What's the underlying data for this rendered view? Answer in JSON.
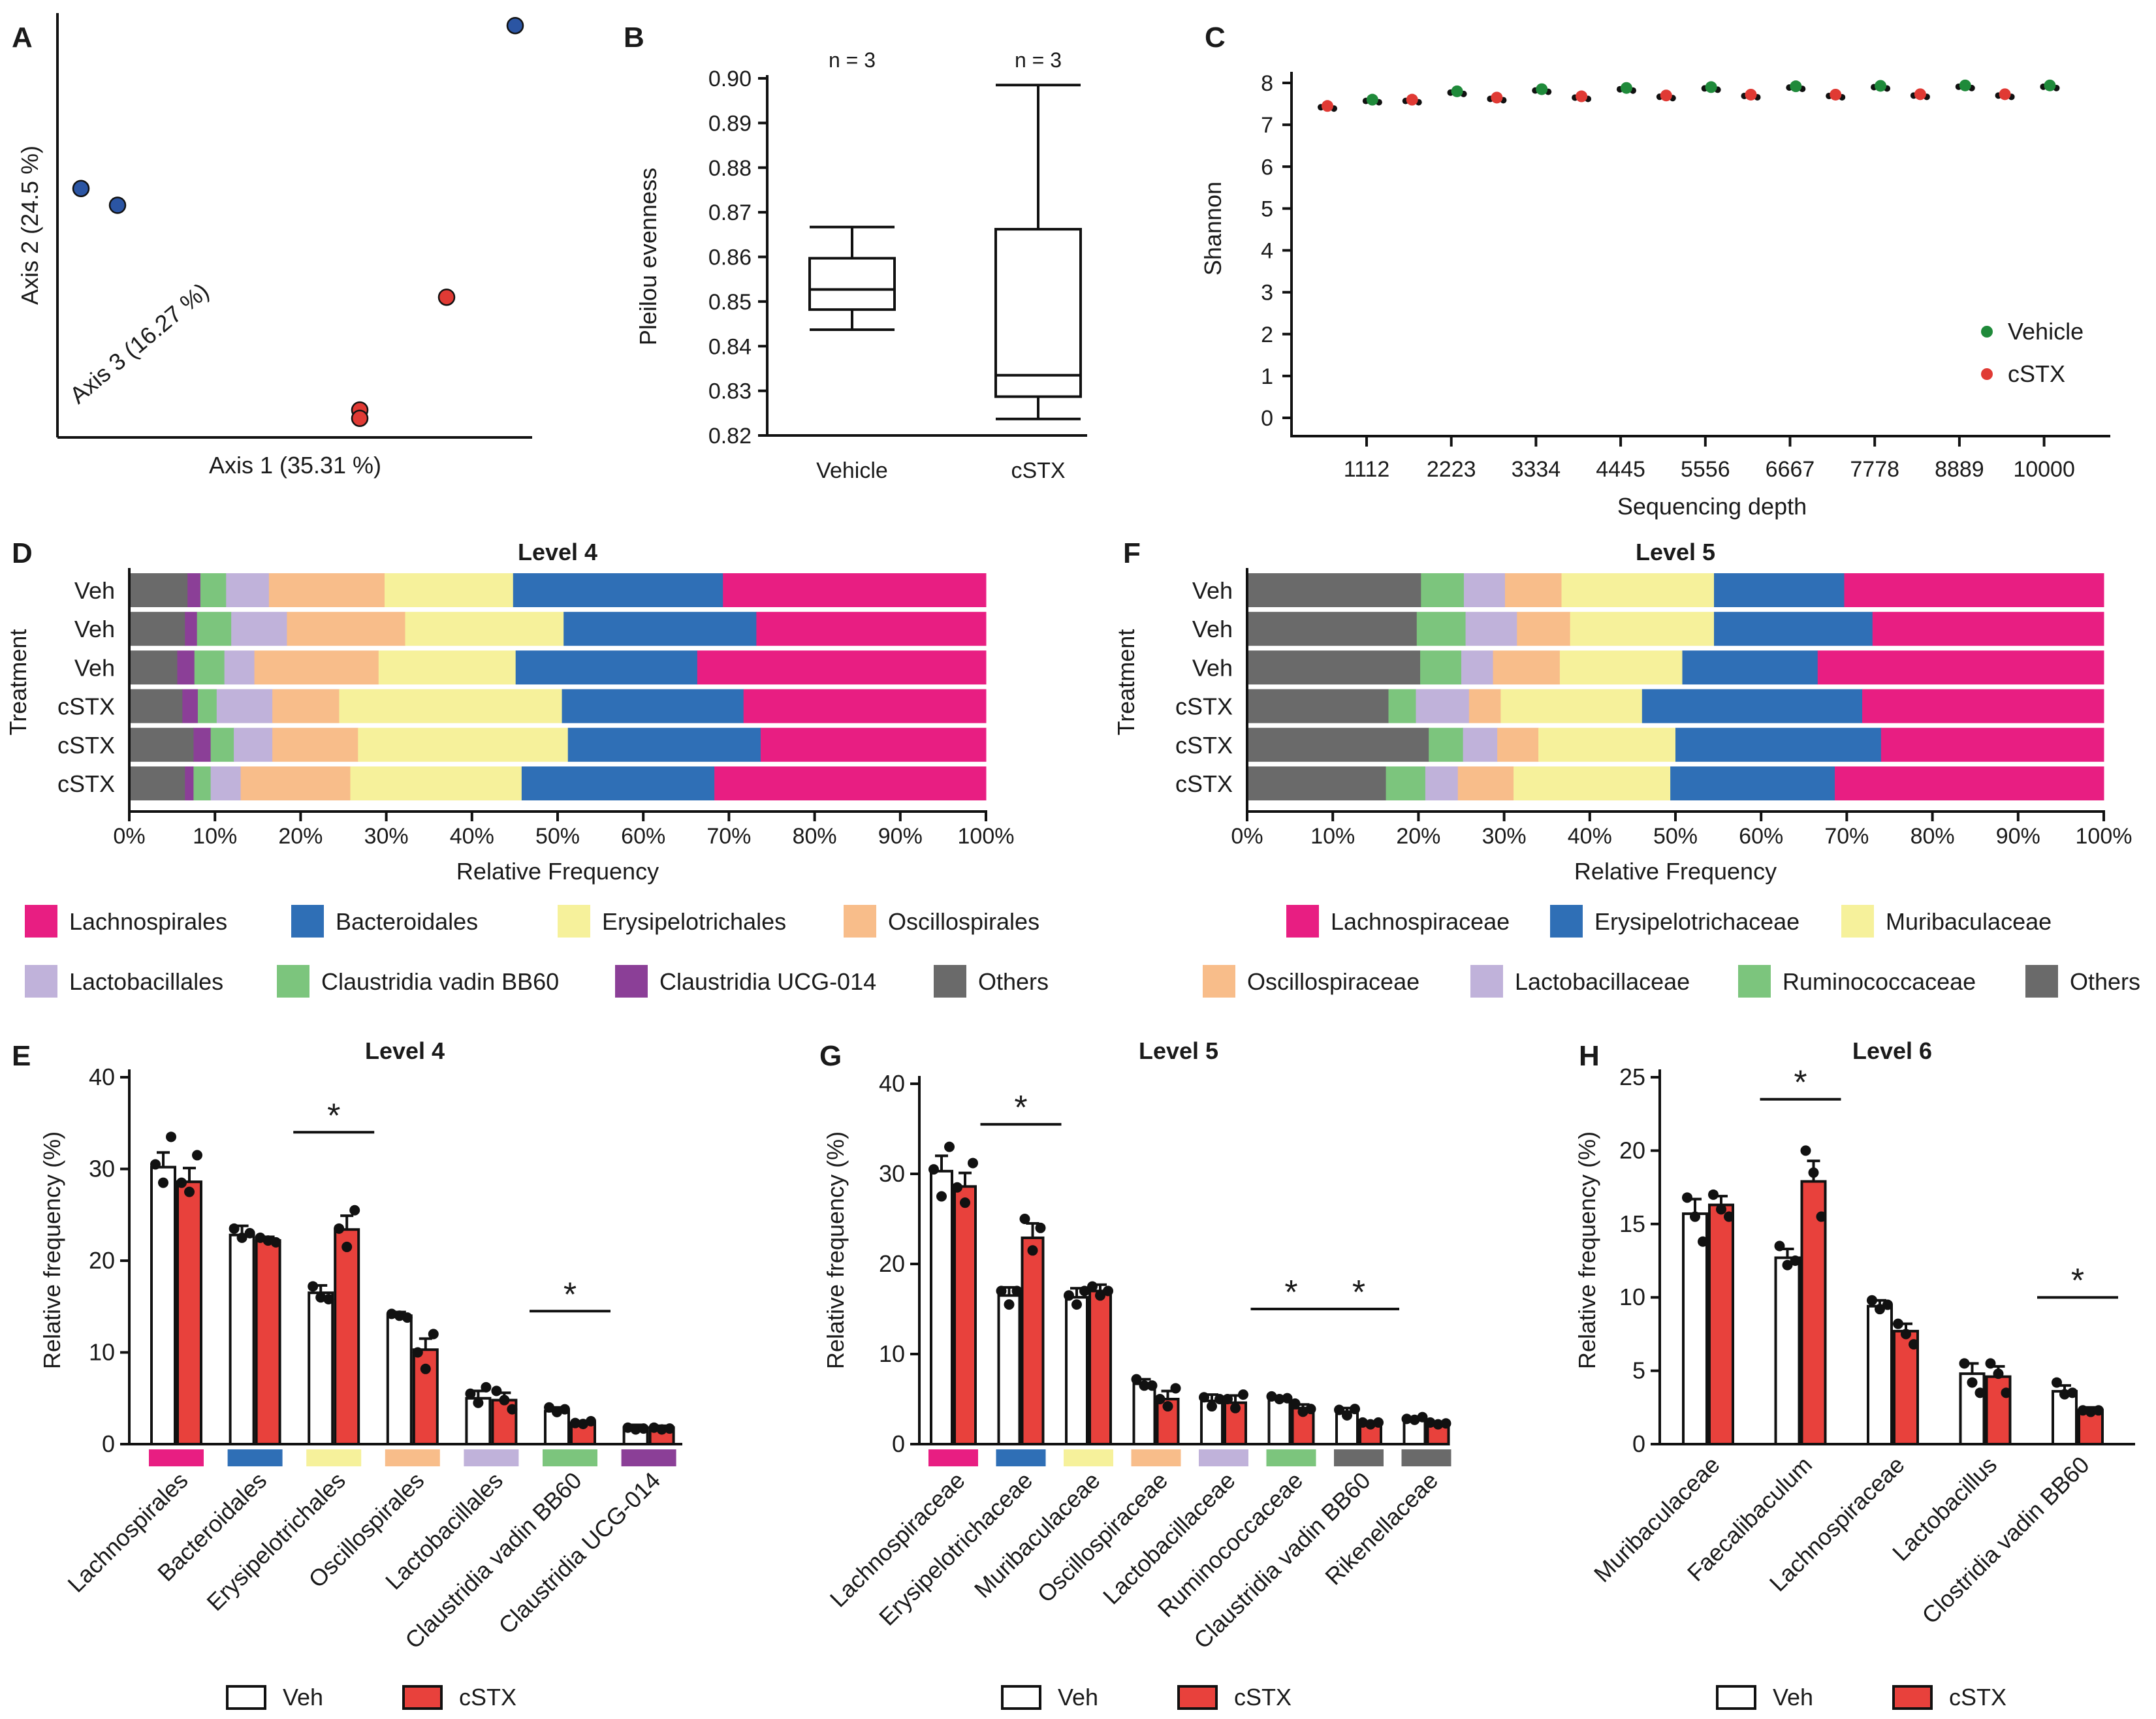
{
  "colors": {
    "veh_dot": "#1f8a3a",
    "cstx_dot": "#e03a34",
    "pcoa_blue": "#2b55a3",
    "pcoa_red": "#e03a34",
    "bar_veh": "#ffffff",
    "bar_cstx": "#e8413c",
    "Lachnospirales": "#e81e82",
    "Bacteroidales": "#2f6fb6",
    "Erysipelotrichales": "#f6f19b",
    "Oscillospirales": "#f8bd8a",
    "Lactobacillales": "#c0b2da",
    "Claustridia vadin BB60": "#7cc57d",
    "Claustridia UCG-014": "#8b3f97",
    "Others": "#6a6a6a",
    "Lachnospiraceae": "#e81e82",
    "Erysipelotrichaceae": "#2f6fb6",
    "Muribaculaceae": "#f6f19b",
    "Oscillospiraceae": "#f8bd8a",
    "Lactobacillaceae": "#c0b2da",
    "Ruminococcaceae": "#7cc57d",
    "Claustridia vadin BB60_l5": "#6a6a6a",
    "Rikenellaceae": "#6a6a6a"
  },
  "panels": {
    "A": "A",
    "B": "B",
    "C": "C",
    "D": "D",
    "E": "E",
    "F": "F",
    "G": "G",
    "H": "H"
  },
  "chart_data": [
    {
      "id": "A",
      "type": "scatter",
      "xlabel": "Axis 1 (35.31 %)",
      "ylabel": "Axis 2 (24.5 %)",
      "zlabel": "Axis 3 (16.27 %)",
      "points": [
        {
          "group": "blue",
          "x": 0.02,
          "y": 0.58
        },
        {
          "group": "blue",
          "x": 0.1,
          "y": 0.54
        },
        {
          "group": "blue",
          "x": 0.97,
          "y": 0.97
        },
        {
          "group": "red",
          "x": 0.82,
          "y": 0.32
        },
        {
          "group": "red",
          "x": 0.63,
          "y": 0.05
        },
        {
          "group": "red",
          "x": 0.63,
          "y": 0.03
        }
      ]
    },
    {
      "id": "B",
      "type": "box",
      "ylabel": "Pleilou evenness",
      "ylim": [
        0.82,
        0.9
      ],
      "yticks": [
        "0.82",
        "0.83",
        "0.84",
        "0.85",
        "0.86",
        "0.87",
        "0.88",
        "0.89",
        "0.90"
      ],
      "groups": [
        {
          "label": "Vehicle",
          "n_label": "n = 3",
          "min": 0.8437,
          "q1": 0.8482,
          "median": 0.8527,
          "q3": 0.8597,
          "max": 0.8667
        },
        {
          "label": "cSTX",
          "n_label": "n = 3",
          "min": 0.8237,
          "q1": 0.8287,
          "median": 0.8335,
          "q3": 0.8662,
          "max": 0.8985
        }
      ]
    },
    {
      "id": "C",
      "type": "scatter",
      "xlabel": "Sequencing depth",
      "ylabel": "Shannon",
      "ylim": [
        0,
        8
      ],
      "yticks": [
        "0",
        "1",
        "2",
        "3",
        "4",
        "5",
        "6",
        "7",
        "8"
      ],
      "xticks": [
        "1112",
        "2223",
        "3334",
        "4445",
        "5556",
        "6667",
        "7778",
        "8889",
        "10000"
      ],
      "legend": [
        "Vehicle",
        "cSTX"
      ],
      "series": [
        {
          "name": "Vehicle",
          "values": [
            7.6,
            7.8,
            7.85,
            7.88,
            7.9,
            7.92,
            7.93,
            7.94,
            7.94
          ]
        },
        {
          "name": "cSTX",
          "values": [
            7.45,
            7.6,
            7.65,
            7.68,
            7.7,
            7.72,
            7.72,
            7.73,
            7.73
          ]
        }
      ]
    },
    {
      "id": "D",
      "type": "bar",
      "orientation": "horizontal",
      "stacked": true,
      "title": "Level 4",
      "xlabel": "Relative Frequency",
      "ylabel": "Treatment",
      "xticks": [
        "0%",
        "10%",
        "20%",
        "30%",
        "40%",
        "50%",
        "60%",
        "70%",
        "80%",
        "90%",
        "100%"
      ],
      "categories": [
        "Veh",
        "Veh",
        "Veh",
        "cSTX",
        "cSTX",
        "cSTX"
      ],
      "series": [
        {
          "name": "Others",
          "values": [
            6.8,
            6.5,
            5.6,
            6.2,
            7.5,
            6.5
          ]
        },
        {
          "name": "Claustridia UCG-014",
          "values": [
            1.5,
            1.4,
            2.0,
            1.8,
            2.0,
            1.0
          ]
        },
        {
          "name": "Claustridia vadin BB60",
          "values": [
            3.0,
            4.0,
            3.5,
            2.2,
            2.7,
            2.0
          ]
        },
        {
          "name": "Lactobacillales",
          "values": [
            5.0,
            6.5,
            3.5,
            6.5,
            4.5,
            3.5
          ]
        },
        {
          "name": "Oscillospirales",
          "values": [
            13.5,
            13.8,
            14.5,
            7.8,
            10.0,
            12.8
          ]
        },
        {
          "name": "Erysipelotrichales",
          "values": [
            15.0,
            18.5,
            16.0,
            26.0,
            24.5,
            20.0
          ]
        },
        {
          "name": "Bacteroidales",
          "values": [
            24.5,
            22.5,
            21.2,
            21.2,
            22.5,
            22.5
          ]
        },
        {
          "name": "Lachnospirales",
          "values": [
            30.7,
            26.8,
            33.7,
            28.3,
            26.3,
            31.7
          ]
        }
      ],
      "legend": [
        "Lachnospirales",
        "Bacteroidales",
        "Erysipelotrichales",
        "Oscillospirales",
        "Lactobacillales",
        "Claustridia vadin BB60",
        "Claustridia UCG-014",
        "Others"
      ]
    },
    {
      "id": "F",
      "type": "bar",
      "orientation": "horizontal",
      "stacked": true,
      "title": "Level 5",
      "xlabel": "Relative Frequency",
      "ylabel": "Treatment",
      "xticks": [
        "0%",
        "10%",
        "20%",
        "30%",
        "40%",
        "50%",
        "60%",
        "70%",
        "80%",
        "90%",
        "100%"
      ],
      "categories": [
        "Veh",
        "Veh",
        "Veh",
        "cSTX",
        "cSTX",
        "cSTX"
      ],
      "series": [
        {
          "name": "Others",
          "values": [
            20.3,
            19.8,
            20.2,
            16.5,
            21.2,
            16.2
          ]
        },
        {
          "name": "Ruminococcaceae",
          "values": [
            5.0,
            5.7,
            4.8,
            3.2,
            4.0,
            4.6
          ]
        },
        {
          "name": "Lactobacillaceae",
          "values": [
            4.8,
            6.0,
            3.7,
            6.2,
            4.0,
            3.8
          ]
        },
        {
          "name": "Oscillospiraceae",
          "values": [
            6.6,
            6.2,
            7.8,
            3.7,
            4.8,
            6.5
          ]
        },
        {
          "name": "Muribaculaceae",
          "values": [
            17.8,
            16.8,
            14.3,
            16.5,
            16.0,
            18.3
          ]
        },
        {
          "name": "Erysipelotrichaceae",
          "values": [
            15.2,
            18.5,
            15.8,
            25.7,
            24.0,
            19.2
          ]
        },
        {
          "name": "Lachnospiraceae",
          "values": [
            30.3,
            27.0,
            33.4,
            28.2,
            26.0,
            31.4
          ]
        }
      ],
      "legend": [
        "Lachnospiraceae",
        "Erysipelotrichaceae",
        "Muribaculaceae",
        "Oscillospiraceae",
        "Lactobacillaceae",
        "Ruminococcaceae",
        "Others"
      ]
    },
    {
      "id": "E",
      "type": "bar",
      "title": "Level 4",
      "ylabel": "Relative frequency (%)",
      "ylim": [
        0,
        40
      ],
      "yticks": [
        "0",
        "10",
        "20",
        "30",
        "40"
      ],
      "categories": [
        "Lachnospirales",
        "Bacteroidales",
        "Erysipelotrichales",
        "Oscillospirales",
        "Lactobacillales",
        "Claustridia vadin BB60",
        "Claustridia UCG-014"
      ],
      "category_colors": [
        "Lachnospirales",
        "Bacteroidales",
        "Erysipelotrichales",
        "Oscillospirales",
        "Lactobacillales",
        "Claustridia vadin BB60",
        "Claustridia UCG-014"
      ],
      "series": [
        {
          "name": "Veh",
          "values": [
            30.2,
            22.8,
            16.5,
            14.0,
            5.0,
            3.6,
            1.8
          ],
          "errors": [
            1.6,
            1.0,
            0.8,
            0.4,
            0.8,
            0.4,
            0.3
          ],
          "points": [
            [
              30.5,
              28.5,
              33.5
            ],
            [
              23.5,
              22.5,
              23.0
            ],
            [
              17.2,
              16.0,
              15.8
            ],
            [
              14.2,
              14.0,
              13.8
            ],
            [
              5.5,
              4.5,
              6.2
            ],
            [
              4.0,
              3.5,
              3.8
            ],
            [
              1.8,
              1.6,
              1.7
            ]
          ]
        },
        {
          "name": "cSTX",
          "values": [
            28.6,
            22.2,
            23.4,
            10.3,
            4.8,
            2.3,
            1.8
          ],
          "errors": [
            1.5,
            0.4,
            1.5,
            1.2,
            0.8,
            0.2,
            0.2
          ],
          "points": [
            [
              28.5,
              27.5,
              31.5
            ],
            [
              22.5,
              22.2,
              22.0
            ],
            [
              23.5,
              21.5,
              25.5
            ],
            [
              10.0,
              8.2,
              12.0
            ],
            [
              5.8,
              4.8,
              3.8
            ],
            [
              2.3,
              2.2,
              2.5
            ],
            [
              1.8,
              1.6,
              1.7
            ]
          ]
        }
      ],
      "significance": [
        {
          "category": "Erysipelotrichales",
          "label": "*",
          "y": 34.0
        },
        {
          "category": "Claustridia vadin BB60",
          "label": "*",
          "y": 14.5
        }
      ],
      "legend": [
        "Veh",
        "cSTX"
      ]
    },
    {
      "id": "G",
      "type": "bar",
      "title": "Level 5",
      "ylabel": "Relative frequency (%)",
      "ylim": [
        0,
        40
      ],
      "yticks": [
        "0",
        "10",
        "20",
        "30",
        "40"
      ],
      "categories": [
        "Lachnospiraceae",
        "Erysipelotrichaceae",
        "Muribaculaceae",
        "Oscillospiraceae",
        "Lactobacillaceae",
        "Ruminococcaceae",
        "Claustridia vadin BB60",
        "Rikenellaceae"
      ],
      "category_colors": [
        "Lachnospiraceae",
        "Erysipelotrichaceae",
        "Muribaculaceae",
        "Oscillospiraceae",
        "Lactobacillaceae",
        "Ruminococcaceae",
        "Claustridia vadin BB60_l5",
        "Rikenellaceae"
      ],
      "series": [
        {
          "name": "Veh",
          "values": [
            30.3,
            16.5,
            16.3,
            6.7,
            4.8,
            5.1,
            3.6,
            2.8
          ],
          "errors": [
            1.7,
            0.9,
            1.0,
            0.5,
            0.7,
            0.2,
            0.4,
            0.2
          ],
          "points": [
            [
              30.5,
              27.5,
              33.0
            ],
            [
              17.0,
              15.5,
              17.0
            ],
            [
              16.5,
              15.5,
              17.0
            ],
            [
              7.2,
              6.5,
              6.5
            ],
            [
              5.2,
              4.2,
              5.0
            ],
            [
              5.3,
              5.0,
              5.1
            ],
            [
              3.8,
              3.2,
              3.9
            ],
            [
              2.8,
              2.7,
              3.0
            ]
          ]
        },
        {
          "name": "cSTX",
          "values": [
            28.6,
            22.9,
            17.0,
            5.0,
            4.6,
            4.0,
            2.3,
            2.3
          ],
          "errors": [
            1.5,
            1.6,
            0.7,
            0.9,
            0.8,
            0.4,
            0.2,
            0.2
          ],
          "points": [
            [
              28.5,
              26.8,
              31.2
            ],
            [
              25.0,
              21.5,
              24.0
            ],
            [
              17.5,
              16.5,
              17.0
            ],
            [
              5.0,
              4.2,
              6.2
            ],
            [
              5.0,
              4.0,
              5.5
            ],
            [
              4.5,
              3.6,
              3.9
            ],
            [
              2.4,
              2.2,
              2.4
            ],
            [
              2.4,
              2.2,
              2.3
            ]
          ]
        }
      ],
      "significance": [
        {
          "category": "Erysipelotrichaceae",
          "label": "*",
          "y": 35.5
        },
        {
          "category": "Ruminococcaceae",
          "label": "*",
          "y": 15.0
        },
        {
          "category": "Claustridia vadin BB60",
          "label": "*",
          "y": 15.0
        }
      ],
      "legend": [
        "Veh",
        "cSTX"
      ]
    },
    {
      "id": "H",
      "type": "bar",
      "title": "Level 6",
      "ylabel": "Relative frequency (%)",
      "ylim": [
        0,
        25
      ],
      "yticks": [
        "0",
        "5",
        "10",
        "15",
        "20",
        "25"
      ],
      "categories": [
        "Muribaculaceae",
        "Faecalibaculum",
        "Lachnospiraceae",
        "Lactobacillus",
        "Clostridia vadin BB60"
      ],
      "category_colors": [],
      "series": [
        {
          "name": "Veh",
          "values": [
            15.7,
            12.7,
            9.4,
            4.8,
            3.6
          ],
          "errors": [
            1.0,
            0.6,
            0.4,
            0.7,
            0.4
          ],
          "points": [
            [
              16.8,
              15.5,
              13.8
            ],
            [
              13.5,
              12.2,
              12.5
            ],
            [
              9.8,
              9.2,
              9.5
            ],
            [
              5.5,
              4.2,
              3.5
            ],
            [
              4.2,
              3.4,
              3.5
            ]
          ]
        },
        {
          "name": "cSTX",
          "values": [
            16.3,
            17.9,
            7.7,
            4.6,
            2.3
          ],
          "errors": [
            0.6,
            1.4,
            0.5,
            0.7,
            0.2
          ],
          "points": [
            [
              17.0,
              16.0,
              15.5
            ],
            [
              20.0,
              18.5,
              15.5
            ],
            [
              8.2,
              7.5,
              6.8
            ],
            [
              5.5,
              4.8,
              3.5
            ],
            [
              2.3,
              2.2,
              2.3
            ]
          ]
        }
      ],
      "significance": [
        {
          "category": "Faecalibaculum",
          "label": "*",
          "y": 23.5
        },
        {
          "category": "Clostridia vadin BB60",
          "label": "*",
          "y": 10.0
        }
      ],
      "legend": [
        "Veh",
        "cSTX"
      ]
    }
  ]
}
